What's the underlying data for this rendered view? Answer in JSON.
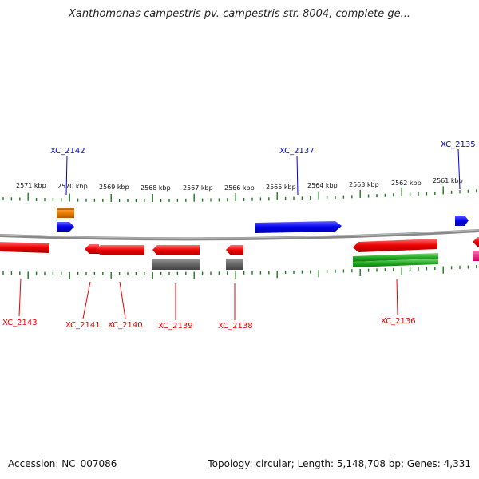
{
  "title": "Xanthomonas campestris pv. campestris str. 8004, complete ge...",
  "footer": {
    "accession": "Accession: NC_007086",
    "topology": "Topology: circular; Length: 5,148,708 bp; Genes: 4,331"
  },
  "scale": [
    "2571 kbp",
    "2570 kbp",
    "2569 kbp",
    "2568 kbp",
    "2567 kbp",
    "2566 kbp",
    "2565 kbp",
    "2564 kbp",
    "2563 kbp",
    "2562 kbp",
    "2561 kbp"
  ],
  "genes_top": [
    {
      "label": "XC_2142",
      "color": "#0000ee"
    },
    {
      "label": "XC_2137",
      "color": "#0000ee"
    },
    {
      "label": "XC_2135",
      "color": "#0000ee"
    }
  ],
  "genes_bottom": [
    {
      "label": "XC_2143",
      "color": "#ee0000"
    },
    {
      "label": "XC_2141",
      "color": "#ee0000"
    },
    {
      "label": "XC_2140",
      "color": "#ee0000"
    },
    {
      "label": "XC_2139",
      "color": "#ee0000"
    },
    {
      "label": "XC_2138",
      "color": "#ee0000"
    },
    {
      "label": "XC_2136",
      "color": "#ee0000"
    }
  ],
  "colors": {
    "backbone": "#888888",
    "tick": "#1a7a1a",
    "forward": "#0000ee",
    "reverse": "#ee0000",
    "orange": "#f08000",
    "gray": "#666666",
    "green": "#22aa22",
    "magenta": "#ee1188"
  }
}
